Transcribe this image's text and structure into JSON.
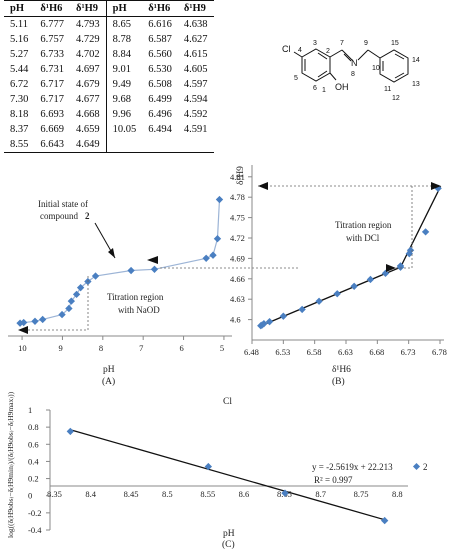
{
  "table": {
    "headers": [
      "pH",
      "δ¹H6",
      "δ¹H9",
      "pH",
      "δ¹H6",
      "δ¹H9"
    ],
    "rows": [
      [
        "5.11",
        "6.777",
        "4.793",
        "8.65",
        "6.616",
        "4.638"
      ],
      [
        "5.16",
        "6.757",
        "4.729",
        "8.78",
        "6.587",
        "4.627"
      ],
      [
        "5.27",
        "6.733",
        "4.702",
        "8.84",
        "6.560",
        "4.615"
      ],
      [
        "5.44",
        "6.731",
        "4.697",
        "9.01",
        "6.530",
        "4.605"
      ],
      [
        "6.72",
        "6.717",
        "4.679",
        "9.49",
        "6.508",
        "4.597"
      ],
      [
        "7.30",
        "6.717",
        "4.677",
        "9.68",
        "6.499",
        "4.594"
      ],
      [
        "8.18",
        "6.693",
        "4.668",
        "9.96",
        "6.496",
        "4.592"
      ],
      [
        "8.37",
        "6.669",
        "4.659",
        "10.05",
        "6.494",
        "4.591"
      ],
      [
        "8.55",
        "6.643",
        "4.649",
        "",
        "",
        ""
      ]
    ]
  },
  "structure": {
    "atoms": {
      "cl": "Cl",
      "n": "N",
      "oh": "OH"
    },
    "numbers": [
      "1",
      "2",
      "3",
      "4",
      "5",
      "6",
      "7",
      "8",
      "9",
      "10",
      "11",
      "12",
      "13",
      "14",
      "15"
    ]
  },
  "chart_data": [
    {
      "type": "scatter",
      "label": "(A)",
      "xlabel": "pH",
      "ylabel": "",
      "x_reversed": true,
      "xlim": [
        10.2,
        4.8
      ],
      "ylim": [
        4.57,
        4.82
      ],
      "xticks": [
        "10",
        "9",
        "8",
        "7",
        "6",
        "5"
      ],
      "annotations": {
        "initial_state": "Initial state of",
        "initial_state_2": "compound",
        "compound_num": "2",
        "region": "Titration region",
        "region_2": "with NaOD"
      },
      "points": [
        [
          10.05,
          4.591
        ],
        [
          9.96,
          4.592
        ],
        [
          9.68,
          4.594
        ],
        [
          9.49,
          4.597
        ],
        [
          9.01,
          4.605
        ],
        [
          8.84,
          4.615
        ],
        [
          8.78,
          4.627
        ],
        [
          8.65,
          4.638
        ],
        [
          8.55,
          4.649
        ],
        [
          8.37,
          4.659
        ],
        [
          8.18,
          4.668
        ],
        [
          7.3,
          4.677
        ],
        [
          6.72,
          4.679
        ],
        [
          5.44,
          4.697
        ],
        [
          5.27,
          4.702
        ],
        [
          5.16,
          4.729
        ],
        [
          5.11,
          4.793
        ]
      ]
    },
    {
      "type": "scatter",
      "label": "(B)",
      "xlabel": "δ¹H6",
      "ylabel": "δ¹H9",
      "xlim": [
        6.48,
        6.78
      ],
      "ylim": [
        4.57,
        4.82
      ],
      "xticks": [
        "6.48",
        "6.53",
        "6.58",
        "6.63",
        "6.68",
        "6.73",
        "6.78"
      ],
      "yticks": [
        "4.6",
        "4.63",
        "4.66",
        "4.69",
        "4.72",
        "4.75",
        "4.78",
        "4.81"
      ],
      "annotations": {
        "region": "Titration region",
        "region_2": "with DCl"
      },
      "points": [
        [
          6.494,
          4.591
        ],
        [
          6.496,
          4.592
        ],
        [
          6.499,
          4.594
        ],
        [
          6.508,
          4.597
        ],
        [
          6.53,
          4.605
        ],
        [
          6.56,
          4.615
        ],
        [
          6.587,
          4.627
        ],
        [
          6.616,
          4.638
        ],
        [
          6.643,
          4.649
        ],
        [
          6.669,
          4.659
        ],
        [
          6.693,
          4.668
        ],
        [
          6.717,
          4.677
        ],
        [
          6.717,
          4.679
        ],
        [
          6.731,
          4.697
        ],
        [
          6.733,
          4.702
        ],
        [
          6.757,
          4.729
        ],
        [
          6.777,
          4.793
        ]
      ]
    },
    {
      "type": "scatter",
      "label": "(C)",
      "title": "Cl",
      "xlabel": "pH",
      "ylabel": "log((δ₍H9obs₎−δ₍H9min₎)/(δ₍H9obs₎−δ₍H9max₎))",
      "xlim": [
        8.35,
        8.8
      ],
      "ylim": [
        -0.4,
        1.0
      ],
      "xticks": [
        "8.35",
        "8.4",
        "8.45",
        "8.5",
        "8.55",
        "8.6",
        "8.65",
        "8.7",
        "8.75",
        "8.8"
      ],
      "yticks": [
        "-0.4",
        "-0.2",
        "0",
        "0.2",
        "0.4",
        "0.6",
        "0.8",
        "1"
      ],
      "equation": "y = -2.5619x + 22.213",
      "r2": "R² = 0.997",
      "legend": "2",
      "points": [
        [
          8.37,
          0.75
        ],
        [
          8.55,
          0.34
        ],
        [
          8.65,
          0.03
        ],
        [
          8.78,
          -0.29
        ]
      ],
      "fit": {
        "slope": -2.5619,
        "intercept": 22.213
      }
    }
  ]
}
